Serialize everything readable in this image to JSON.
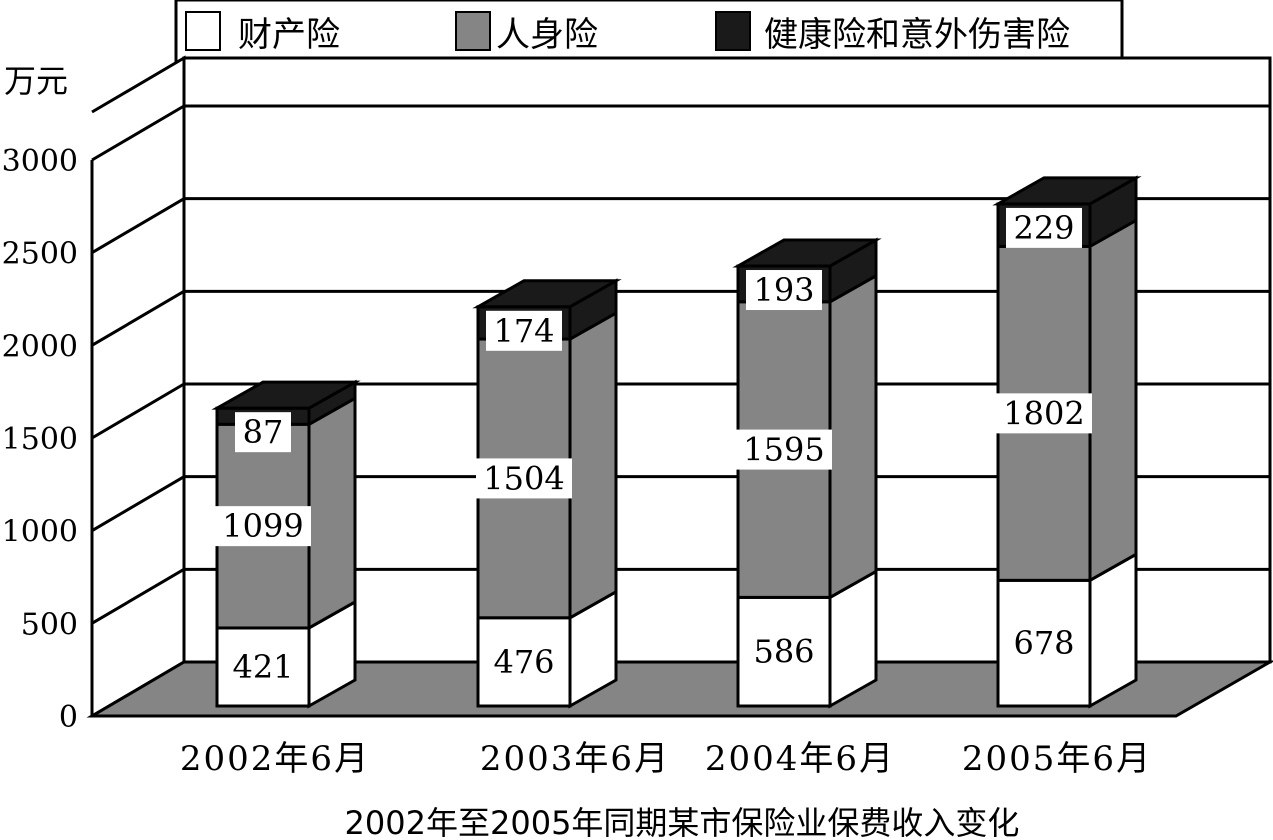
{
  "chart_data": {
    "type": "bar",
    "stacked": true,
    "three_d": true,
    "title": "2002年至2005年同期某市保险业保费收入变化",
    "ylabel": "万元",
    "xlabel": "",
    "ylim": [
      0,
      3000
    ],
    "yticks": [
      0,
      500,
      1000,
      1500,
      2000,
      2500,
      3000
    ],
    "grid": true,
    "legend_position": "top",
    "categories": [
      "2002年6月",
      "2003年6月",
      "2004年6月",
      "2005年6月"
    ],
    "series": [
      {
        "name": "财产险",
        "values": [
          421,
          476,
          586,
          678
        ],
        "color": "#ffffff"
      },
      {
        "name": "人身险",
        "values": [
          1099,
          1504,
          1595,
          1802
        ],
        "color": "#858585"
      },
      {
        "name": "健康险和意外伤害险",
        "values": [
          87,
          174,
          193,
          229
        ],
        "color": "#1a1a1a"
      }
    ]
  }
}
